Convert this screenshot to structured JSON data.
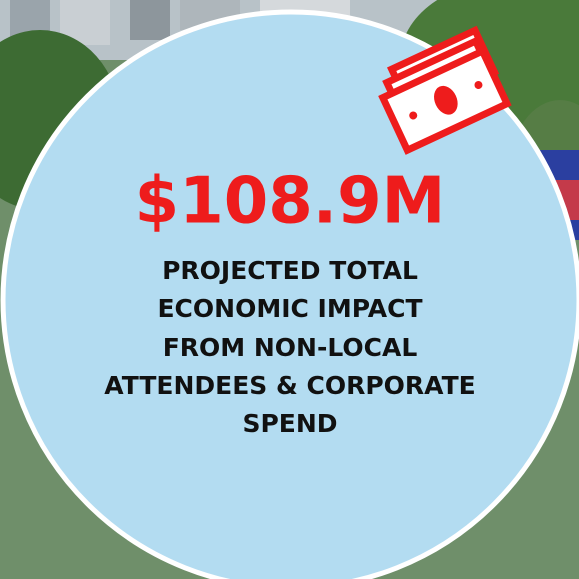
{
  "headline": "$108.9M",
  "description_lines": [
    "PROJECTED TOTAL",
    "ECONOMIC IMPACT",
    "FROM NON-LOCAL",
    "ATTENDEES & CORPORATE",
    "SPEND"
  ]
}
